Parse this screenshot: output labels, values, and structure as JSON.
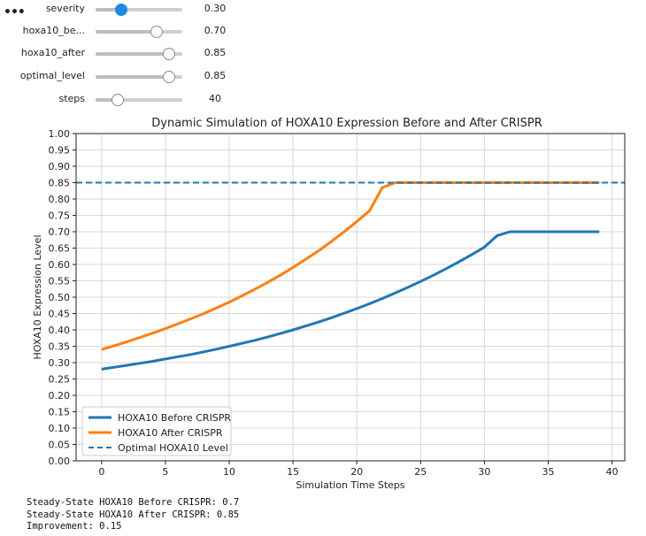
{
  "sliders": [
    {
      "label": "severity",
      "value": "0.30",
      "min": 0,
      "max": 1,
      "position": 0.3,
      "active": true
    },
    {
      "label": "hoxa10_be...",
      "value": "0.70",
      "min": 0,
      "max": 1,
      "position": 0.7,
      "active": false
    },
    {
      "label": "hoxa10_after",
      "value": "0.85",
      "min": 0,
      "max": 1,
      "position": 0.85,
      "active": false
    },
    {
      "label": "optimal_level",
      "value": "0.85",
      "min": 0,
      "max": 1,
      "position": 0.85,
      "active": false
    },
    {
      "label": "steps",
      "value": "40",
      "min": 10,
      "max": 100,
      "position": 0.25,
      "active": false
    }
  ],
  "chart_data": {
    "type": "line",
    "title": "Dynamic Simulation of HOXA10 Expression Before and After CRISPR",
    "xlabel": "Simulation Time Steps",
    "ylabel": "HOXA10 Expression Level",
    "xlim": [
      -2,
      41
    ],
    "ylim": [
      0,
      1.0
    ],
    "xticks": [
      0,
      5,
      10,
      15,
      20,
      25,
      30,
      35,
      40
    ],
    "yticks": [
      0.0,
      0.05,
      0.1,
      0.15,
      0.2,
      0.25,
      0.3,
      0.35,
      0.4,
      0.45,
      0.5,
      0.55,
      0.6,
      0.65,
      0.7,
      0.75,
      0.8,
      0.85,
      0.9,
      0.95,
      1.0
    ],
    "ytick_labels": [
      "0.00",
      "0.05",
      "0.10",
      "0.15",
      "0.20",
      "0.25",
      "0.30",
      "0.35",
      "0.40",
      "0.45",
      "0.50",
      "0.55",
      "0.60",
      "0.65",
      "0.70",
      "0.75",
      "0.80",
      "0.85",
      "0.90",
      "0.95",
      "1.00"
    ],
    "grid": true,
    "legend_position": "lower-left",
    "series": [
      {
        "name": "HOXA10 Before CRISPR",
        "color": "#1f77b4",
        "style": "solid",
        "x": [
          0,
          1,
          2,
          3,
          4,
          5,
          6,
          7,
          8,
          9,
          10,
          11,
          12,
          13,
          14,
          15,
          16,
          17,
          18,
          19,
          20,
          21,
          22,
          23,
          24,
          25,
          26,
          27,
          28,
          29,
          30,
          31,
          32,
          33,
          34,
          35,
          36,
          37,
          38,
          39
        ],
        "y": [
          0.28,
          0.286,
          0.292,
          0.298,
          0.304,
          0.311,
          0.318,
          0.325,
          0.333,
          0.341,
          0.35,
          0.359,
          0.368,
          0.378,
          0.389,
          0.4,
          0.412,
          0.424,
          0.437,
          0.451,
          0.465,
          0.48,
          0.496,
          0.513,
          0.53,
          0.548,
          0.567,
          0.587,
          0.608,
          0.63,
          0.653,
          0.688,
          0.7,
          0.7,
          0.7,
          0.7,
          0.7,
          0.7,
          0.7,
          0.7
        ]
      },
      {
        "name": "HOXA10 After CRISPR",
        "color": "#ff7f0e",
        "style": "solid",
        "x": [
          0,
          1,
          2,
          3,
          4,
          5,
          6,
          7,
          8,
          9,
          10,
          11,
          12,
          13,
          14,
          15,
          16,
          17,
          18,
          19,
          20,
          21,
          22,
          23,
          24,
          25,
          26,
          27,
          28,
          29,
          30,
          31,
          32,
          33,
          34,
          35,
          36,
          37,
          38,
          39
        ],
        "y": [
          0.34,
          0.352,
          0.364,
          0.377,
          0.39,
          0.404,
          0.419,
          0.434,
          0.45,
          0.467,
          0.485,
          0.504,
          0.524,
          0.545,
          0.567,
          0.591,
          0.616,
          0.642,
          0.67,
          0.7,
          0.731,
          0.764,
          0.835,
          0.85,
          0.85,
          0.85,
          0.85,
          0.85,
          0.85,
          0.85,
          0.85,
          0.85,
          0.85,
          0.85,
          0.85,
          0.85,
          0.85,
          0.85,
          0.85,
          0.85
        ]
      },
      {
        "name": "Optimal HOXA10 Level",
        "color": "#1f77b4",
        "style": "dashed",
        "hline": 0.85
      }
    ]
  },
  "output": {
    "line1": "Steady-State HOXA10 Before CRISPR: 0.7",
    "line2": "Steady-State HOXA10 After CRISPR: 0.85",
    "line3": "Improvement: 0.15"
  }
}
